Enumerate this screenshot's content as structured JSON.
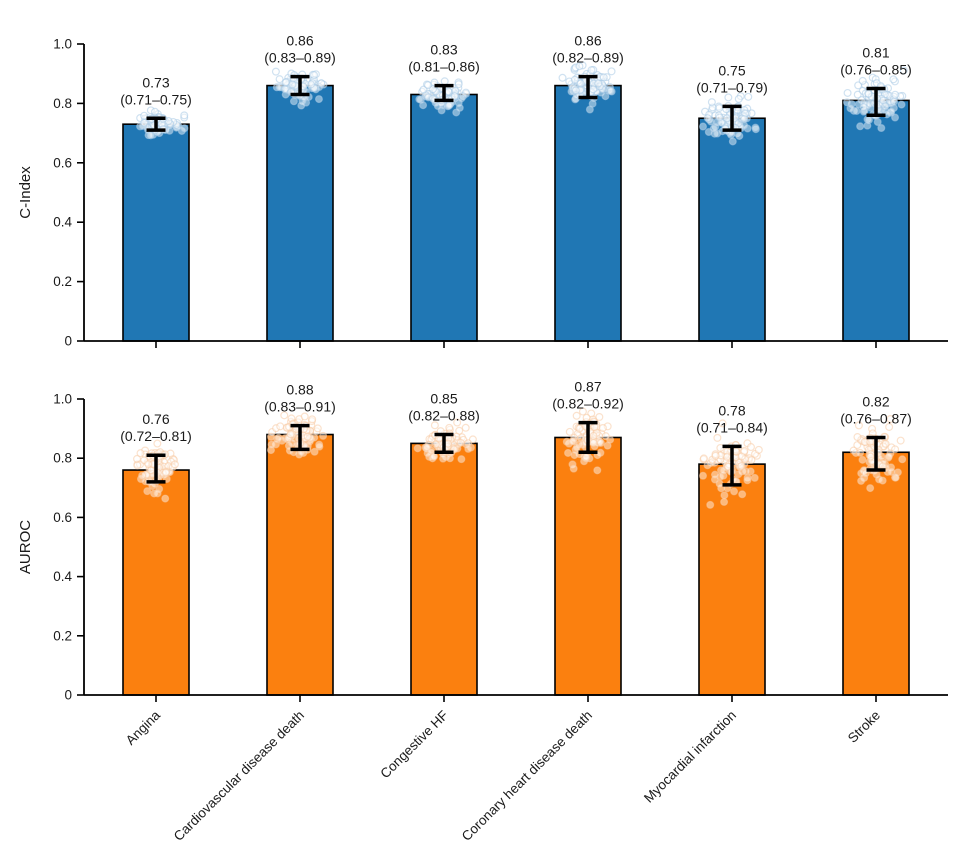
{
  "figure": {
    "background": "#ffffff"
  },
  "chart_data": {
    "type": "bar",
    "orientation": "vertical",
    "grid": false,
    "x_tick_rotation": 45,
    "categories": [
      "Angina",
      "Cardiovascular disease death",
      "Congestive HF",
      "Coronary heart disease death",
      "Myocardial infarction",
      "Stroke"
    ],
    "scatter_overlay": {
      "points_per_bar": 95
    },
    "panels": [
      {
        "ylabel": "C-Index",
        "ylim": [
          0,
          1
        ],
        "ytick_labels": [
          "0",
          "0.2",
          "0.4",
          "0.6",
          "0.8",
          "1.0"
        ],
        "bar_color": "#2077b4",
        "bar_edge_color": "#000000",
        "error_bar_color": "#000000",
        "point_fill_color": "#ffffff",
        "point_stroke_color": "#a9cbe6",
        "show_x_tick_labels": false,
        "values": [
          0.73,
          0.86,
          0.83,
          0.86,
          0.75,
          0.81
        ],
        "ci_low": [
          0.71,
          0.83,
          0.81,
          0.82,
          0.71,
          0.76
        ],
        "ci_high": [
          0.75,
          0.89,
          0.86,
          0.89,
          0.79,
          0.85
        ],
        "annotations": [
          {
            "value": "0.73",
            "ci": "(0.71–0.75)"
          },
          {
            "value": "0.86",
            "ci": "(0.83–0.89)"
          },
          {
            "value": "0.83",
            "ci": "(0.81–0.86)"
          },
          {
            "value": "0.86",
            "ci": "(0.82–0.89)"
          },
          {
            "value": "0.75",
            "ci": "(0.71–0.79)"
          },
          {
            "value": "0.81",
            "ci": "(0.76–0.85)"
          }
        ]
      },
      {
        "ylabel": "AUROC",
        "ylim": [
          0,
          1
        ],
        "ytick_labels": [
          "0",
          "0.2",
          "0.4",
          "0.6",
          "0.8",
          "1.0"
        ],
        "bar_color": "#fb800f",
        "bar_edge_color": "#000000",
        "error_bar_color": "#000000",
        "point_fill_color": "#ffffff",
        "point_stroke_color": "#f7cba4",
        "show_x_tick_labels": true,
        "values": [
          0.76,
          0.88,
          0.85,
          0.87,
          0.78,
          0.82
        ],
        "ci_low": [
          0.72,
          0.83,
          0.82,
          0.82,
          0.71,
          0.76
        ],
        "ci_high": [
          0.81,
          0.91,
          0.88,
          0.92,
          0.84,
          0.87
        ],
        "annotations": [
          {
            "value": "0.76",
            "ci": "(0.72–0.81)"
          },
          {
            "value": "0.88",
            "ci": "(0.83–0.91)"
          },
          {
            "value": "0.85",
            "ci": "(0.82–0.88)"
          },
          {
            "value": "0.87",
            "ci": "(0.82–0.92)"
          },
          {
            "value": "0.78",
            "ci": "(0.71–0.84)"
          },
          {
            "value": "0.82",
            "ci": "(0.76–0.87)"
          }
        ]
      }
    ]
  }
}
